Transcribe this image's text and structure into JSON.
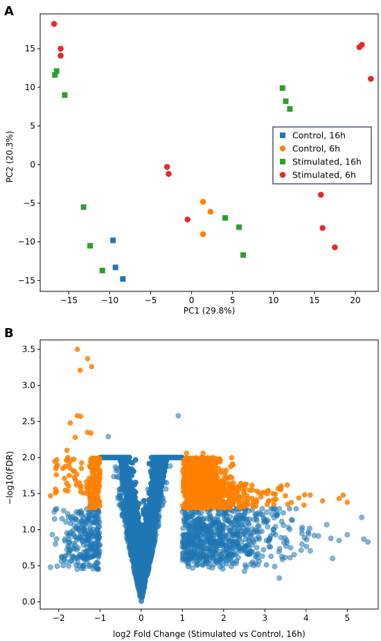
{
  "colors": {
    "blue": "#1f77b4",
    "orange": "#ff7f0e",
    "green": "#2ca02c",
    "red": "#e8282b",
    "volcano_blue": "#1f77b4",
    "volcano_orange": "#ff8000"
  },
  "chart_data": [
    {
      "panel_label": "A",
      "type": "scatter",
      "title": "",
      "xlabel": "PC1 (29.8%)",
      "ylabel": "PC2 (20.3%)",
      "xlim": [
        -18.5,
        22.8
      ],
      "ylim": [
        -16.4,
        19.5
      ],
      "xticks": [
        -15,
        -10,
        -5,
        0,
        5,
        10,
        15,
        20
      ],
      "yticks": [
        -15,
        -10,
        -5,
        0,
        5,
        10,
        15
      ],
      "legend_position": "center-right",
      "series": [
        {
          "name": "Control, 16h",
          "marker": "square",
          "color": "#1f77b4",
          "points": [
            [
              -9.6,
              -9.8
            ],
            [
              -9.3,
              -13.3
            ],
            [
              -8.4,
              -14.8
            ]
          ]
        },
        {
          "name": "Control, 6h",
          "marker": "circle",
          "color": "#ff7f0e",
          "points": [
            [
              1.4,
              -4.8
            ],
            [
              2.3,
              -6.1
            ],
            [
              1.4,
              -9.0
            ]
          ]
        },
        {
          "name": "Stimulated, 16h",
          "marker": "square",
          "color": "#2ca02c",
          "points": [
            [
              -16.5,
              12.1
            ],
            [
              -16.7,
              11.6
            ],
            [
              -15.5,
              9.0
            ],
            [
              -13.2,
              -5.5
            ],
            [
              -12.4,
              -10.5
            ],
            [
              -10.9,
              -13.7
            ],
            [
              11.1,
              9.9
            ],
            [
              11.5,
              8.2
            ],
            [
              12.0,
              7.2
            ],
            [
              4.1,
              -6.9
            ],
            [
              5.8,
              -8.1
            ],
            [
              6.3,
              -11.7
            ]
          ]
        },
        {
          "name": "Stimulated, 6h",
          "marker": "circle",
          "color": "#e8282b",
          "points": [
            [
              -16.8,
              18.2
            ],
            [
              -16.0,
              15.0
            ],
            [
              -16.0,
              14.1
            ],
            [
              -3.0,
              -0.3
            ],
            [
              -2.8,
              -1.2
            ],
            [
              -0.5,
              -7.1
            ],
            [
              20.5,
              15.2
            ],
            [
              20.8,
              15.5
            ],
            [
              21.9,
              11.1
            ],
            [
              15.8,
              -3.9
            ],
            [
              16.0,
              -8.2
            ],
            [
              17.5,
              -10.7
            ]
          ]
        }
      ]
    },
    {
      "panel_label": "B",
      "type": "scatter",
      "title": "",
      "xlabel": "log2 Fold Change (Stimulated vs Control, 16h)",
      "ylabel": "−log10(FDR)",
      "xlim": [
        -2.45,
        5.75
      ],
      "ylim": [
        -0.1,
        3.63
      ],
      "xticks": [
        -2,
        -1,
        0,
        1,
        2,
        3,
        4,
        5
      ],
      "yticks": [
        0.0,
        0.5,
        1.0,
        1.5,
        2.0,
        2.5,
        3.0,
        3.5
      ],
      "series": [
        {
          "name": "",
          "role": "not significant",
          "color": "#1f77b4"
        },
        {
          "name": "",
          "role": "significant (|log2FC| > 1, FDR < 0.05)",
          "color": "#ff8000"
        }
      ],
      "significant_highlights": [
        [
          -1.55,
          3.5
        ],
        [
          -1.3,
          3.37
        ],
        [
          -1.48,
          3.21
        ],
        [
          -1.2,
          3.26
        ],
        [
          -1.55,
          2.58
        ],
        [
          -1.47,
          2.57
        ],
        [
          -1.72,
          2.48
        ],
        [
          -1.3,
          2.35
        ],
        [
          -1.22,
          2.34
        ],
        [
          -1.6,
          2.28
        ],
        [
          -1.8,
          2.1
        ],
        [
          -2.05,
          1.97
        ],
        [
          -1.9,
          1.85
        ],
        [
          -1.45,
          1.85
        ],
        [
          -1.5,
          1.65
        ],
        [
          -2.2,
          1.47
        ],
        [
          -2.05,
          1.53
        ],
        [
          4.9,
          1.48
        ],
        [
          4.8,
          1.43
        ],
        [
          4.1,
          1.48
        ],
        [
          3.5,
          1.47
        ],
        [
          5.0,
          1.38
        ],
        [
          3.1,
          1.4
        ],
        [
          2.8,
          1.38
        ],
        [
          2.5,
          1.35
        ],
        [
          1.5,
          2.06
        ],
        [
          1.1,
          2.06
        ],
        [
          2.2,
          1.72
        ],
        [
          3.2,
          1.5
        ],
        [
          4.4,
          1.4
        ]
      ],
      "outlier_points": [
        [
          0.9,
          2.58
        ],
        [
          -0.8,
          2.29
        ],
        [
          -2.1,
          1.15
        ],
        [
          -2.2,
          0.48
        ],
        [
          5.0,
          0.93
        ],
        [
          5.35,
          1.17
        ],
        [
          5.5,
          0.83
        ],
        [
          5.4,
          0.87
        ],
        [
          4.8,
          0.85
        ],
        [
          3.35,
          0.33
        ],
        [
          4.6,
          0.88
        ],
        [
          4.5,
          1.07
        ],
        [
          4.2,
          0.92
        ],
        [
          3.9,
          1.0
        ]
      ]
    }
  ]
}
